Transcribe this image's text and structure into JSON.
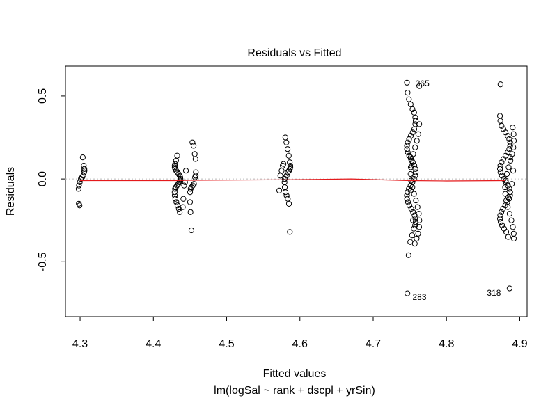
{
  "chart_data": {
    "type": "scatter",
    "title": "Residuals vs Fitted",
    "xlabel": "Fitted values",
    "subtitle": "lm(logSal ~ rank + dscpl + yrSin)",
    "ylabel": "Residuals",
    "xlim": [
      4.28,
      4.91
    ],
    "ylim": [
      -0.83,
      0.68
    ],
    "x_ticks": [
      4.3,
      4.4,
      4.5,
      4.6,
      4.7,
      4.8,
      4.9
    ],
    "x_tick_labels": [
      "4.3",
      "4.4",
      "4.5",
      "4.6",
      "4.7",
      "4.8",
      "4.9"
    ],
    "y_ticks": [
      -0.5,
      0.0,
      0.5
    ],
    "y_tick_labels": [
      "-0.5",
      "0.0",
      "0.5"
    ],
    "reference_line": {
      "y": 0,
      "color": "#bbbbbb",
      "style": "dotted"
    },
    "smoother": {
      "color": "#e41a1c",
      "x": [
        4.3,
        4.35,
        4.43,
        4.45,
        4.58,
        4.67,
        4.75,
        4.8,
        4.88
      ],
      "y": [
        -0.01,
        -0.01,
        -0.01,
        -0.008,
        -0.005,
        0.0,
        -0.01,
        -0.012,
        -0.01
      ]
    },
    "annotations": [
      {
        "text": "365",
        "x": 4.752,
        "y": 0.575
      },
      {
        "text": "283",
        "x": 4.748,
        "y": -0.695
      },
      {
        "text": "318",
        "x": 4.88,
        "y": -0.67
      }
    ],
    "point_clusters": [
      {
        "center": 4.302,
        "spread": 0.004,
        "ys": [
          0.13,
          0.08,
          0.06,
          0.05,
          0.04,
          0.02,
          0.01,
          0.0,
          -0.02,
          -0.04,
          -0.06,
          -0.15,
          -0.16
        ]
      },
      {
        "center": 4.433,
        "spread": 0.004,
        "ys": [
          0.14,
          0.11,
          0.09,
          0.08,
          0.07,
          0.06,
          0.05,
          0.04,
          0.03,
          0.02,
          0.01,
          0.0,
          -0.01,
          -0.02,
          -0.03,
          -0.04,
          -0.05,
          -0.06,
          -0.08,
          -0.1,
          -0.12,
          -0.14,
          -0.16,
          -0.18,
          -0.2
        ]
      },
      {
        "center": 4.454,
        "spread": 0.004,
        "ys": [
          0.22,
          0.2,
          0.15,
          0.12,
          0.04,
          0.02,
          0.01,
          -0.03,
          -0.04,
          -0.05,
          -0.06,
          -0.08,
          -0.14,
          -0.2,
          -0.31
        ]
      },
      {
        "center": 4.443,
        "spread": 0.003,
        "ys": [
          0.05,
          -0.02,
          -0.04,
          -0.12,
          -0.17
        ]
      },
      {
        "center": 4.583,
        "spread": 0.004,
        "ys": [
          0.25,
          0.22,
          0.18,
          0.14,
          0.1,
          0.08,
          0.07,
          0.06,
          0.05,
          0.04,
          0.02,
          0.01,
          0.0,
          -0.02,
          -0.05,
          -0.08,
          -0.1,
          -0.12,
          -0.15,
          -0.32
        ]
      },
      {
        "center": 4.574,
        "spread": 0.004,
        "ys": [
          0.09,
          0.08,
          0.05,
          0.02,
          -0.07
        ]
      },
      {
        "center": 4.752,
        "spread": 0.006,
        "ys": [
          0.58,
          0.52,
          0.48,
          0.45,
          0.42,
          0.4,
          0.37,
          0.35,
          0.33,
          0.3,
          0.28,
          0.26,
          0.24,
          0.22,
          0.2,
          0.18,
          0.16,
          0.14,
          0.12,
          0.1,
          0.08,
          0.06,
          0.04,
          0.02,
          0.0,
          -0.02,
          -0.04,
          -0.06,
          -0.08,
          -0.1,
          -0.12,
          -0.14,
          -0.16,
          -0.18,
          -0.2,
          -0.22,
          -0.24,
          -0.26,
          -0.28,
          -0.3,
          -0.34,
          -0.38,
          -0.46,
          -0.69
        ]
      },
      {
        "center": 4.757,
        "spread": 0.006,
        "ys": [
          0.56,
          0.33,
          0.27,
          0.23,
          0.19,
          0.15,
          0.11,
          0.07,
          0.03,
          -0.01,
          -0.05,
          -0.09,
          -0.13,
          -0.17,
          -0.21,
          -0.25,
          -0.29,
          -0.33,
          -0.36,
          -0.39,
          -0.25,
          0.08,
          -0.07,
          0.13
        ]
      },
      {
        "center": 4.88,
        "spread": 0.007,
        "ys": [
          0.57,
          0.38,
          0.35,
          0.32,
          0.3,
          0.28,
          0.26,
          0.24,
          0.22,
          0.2,
          0.18,
          0.16,
          0.14,
          0.12,
          0.1,
          0.08,
          0.06,
          0.04,
          0.02,
          0.0,
          -0.02,
          -0.04,
          -0.06,
          -0.08,
          -0.1,
          -0.12,
          -0.14,
          -0.16,
          -0.18,
          -0.2,
          -0.22,
          -0.24,
          -0.26,
          -0.28,
          -0.3,
          -0.32,
          -0.35,
          -0.66
        ]
      },
      {
        "center": 4.886,
        "spread": 0.006,
        "ys": [
          0.31,
          0.27,
          0.23,
          0.19,
          0.15,
          0.11,
          0.07,
          0.03,
          -0.01,
          -0.05,
          -0.09,
          -0.13,
          -0.17,
          -0.21,
          -0.25,
          -0.29,
          -0.33,
          -0.36,
          0.05,
          -0.03,
          0.13,
          -0.11
        ]
      }
    ]
  }
}
